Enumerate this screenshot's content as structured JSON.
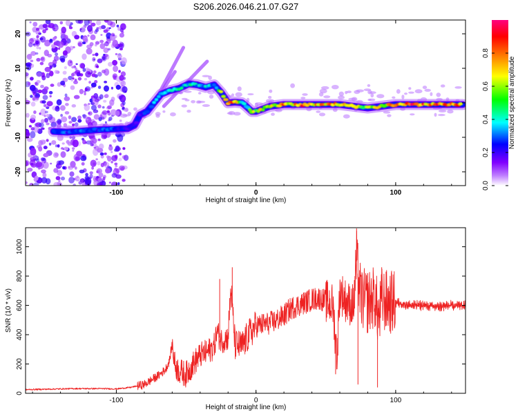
{
  "figure_title": "S206.2026.046.21.07.G27",
  "chart_data": [
    {
      "type": "heatmap",
      "title": "S206.2026.046.21.07.G27",
      "xlabel": "Height of straight line (km)",
      "ylabel": "Frequency (Hz)",
      "xlim": [
        -165,
        150
      ],
      "ylim": [
        -24,
        24
      ],
      "x_ticks": [
        "-100",
        "0",
        "100"
      ],
      "y_ticks": [
        "-20",
        "-10",
        "0",
        "10",
        "20"
      ],
      "x_tick_values": [
        -100,
        0,
        100
      ],
      "y_tick_values": [
        -20,
        -10,
        0,
        10,
        20
      ],
      "colorbar": {
        "label": "Normalized spectral amplitude",
        "range": [
          0,
          1
        ],
        "ticks": [
          "0.0",
          "0.2",
          "0.4",
          "0.6",
          "0.8"
        ],
        "tick_values": [
          0.0,
          0.2,
          0.4,
          0.6,
          0.8
        ],
        "colormap": [
          "#ffffff",
          "#8000ff",
          "#0000ff",
          "#00ffff",
          "#00ff00",
          "#ffff00",
          "#ff8000",
          "#ff0000",
          "#ff0080"
        ]
      },
      "ridge": {
        "x": [
          -145,
          -135,
          -112,
          -100,
          -92,
          -87,
          -83,
          -78,
          -73,
          -68,
          -62,
          -55,
          -48,
          -42,
          -36,
          -30,
          -25,
          -20,
          -15,
          -10,
          -7,
          -3,
          0,
          10,
          20,
          30,
          40,
          50,
          60,
          70,
          80,
          90,
          100,
          110,
          120,
          130,
          140,
          148
        ],
        "y": [
          -8.3,
          -8.5,
          -7.8,
          -7.6,
          -7.5,
          -6.5,
          -3.5,
          -2.5,
          0,
          2.5,
          3.5,
          4.2,
          5.5,
          5.2,
          4.5,
          5.2,
          3,
          0,
          0.2,
          0,
          -1,
          -2.5,
          -2.5,
          -1,
          -0.5,
          -0.5,
          -0.5,
          -0.5,
          -0.5,
          -1,
          -1.5,
          -1,
          -0.5,
          -0.5,
          -0.5,
          -0.5,
          -0.5,
          -0.5
        ],
        "amplitude": [
          0.3,
          0.3,
          0.3,
          0.3,
          0.2,
          0.2,
          0.25,
          0.3,
          0.35,
          0.35,
          0.4,
          0.45,
          0.45,
          0.4,
          0.4,
          0.35,
          0.6,
          0.95,
          0.9,
          0.5,
          0.4,
          0.6,
          0.65,
          0.75,
          0.8,
          0.85,
          0.85,
          0.85,
          0.8,
          0.7,
          0.6,
          0.7,
          0.85,
          0.9,
          0.9,
          0.9,
          0.9,
          0.9
        ]
      }
    },
    {
      "type": "line",
      "xlabel": "Height of straight line (km)",
      "ylabel": "SNR (10 * v/v)",
      "xlim": [
        -165,
        150
      ],
      "ylim": [
        0,
        1130
      ],
      "x_ticks": [
        "-100",
        "0",
        "100"
      ],
      "y_ticks": [
        "0",
        "200",
        "400",
        "600",
        "800",
        "1000"
      ],
      "x_tick_values": [
        -100,
        0,
        100
      ],
      "y_tick_values": [
        0,
        200,
        400,
        600,
        800,
        1000
      ],
      "series": [
        {
          "name": "SNR",
          "color": "#ee2222",
          "x": [
            -165,
            -150,
            -130,
            -110,
            -100,
            -90,
            -80,
            -75,
            -70,
            -65,
            -62,
            -60,
            -58,
            -55,
            -50,
            -45,
            -40,
            -35,
            -30,
            -28,
            -25,
            -20,
            -18,
            -15,
            -10,
            -5,
            0,
            5,
            10,
            15,
            20,
            25,
            30,
            35,
            40,
            45,
            50,
            55,
            58,
            60,
            65,
            70,
            72,
            75,
            80,
            85,
            88,
            90,
            95,
            100,
            110,
            120,
            130,
            140,
            150
          ],
          "y": [
            25,
            28,
            32,
            32,
            30,
            40,
            60,
            90,
            120,
            160,
            220,
            340,
            190,
            150,
            130,
            200,
            260,
            280,
            320,
            420,
            360,
            380,
            720,
            330,
            320,
            400,
            460,
            470,
            480,
            500,
            530,
            580,
            600,
            620,
            640,
            650,
            630,
            600,
            250,
            700,
            620,
            600,
            900,
            650,
            620,
            660,
            500,
            640,
            620,
            620,
            600,
            600,
            590,
            600,
            600
          ]
        }
      ]
    }
  ]
}
